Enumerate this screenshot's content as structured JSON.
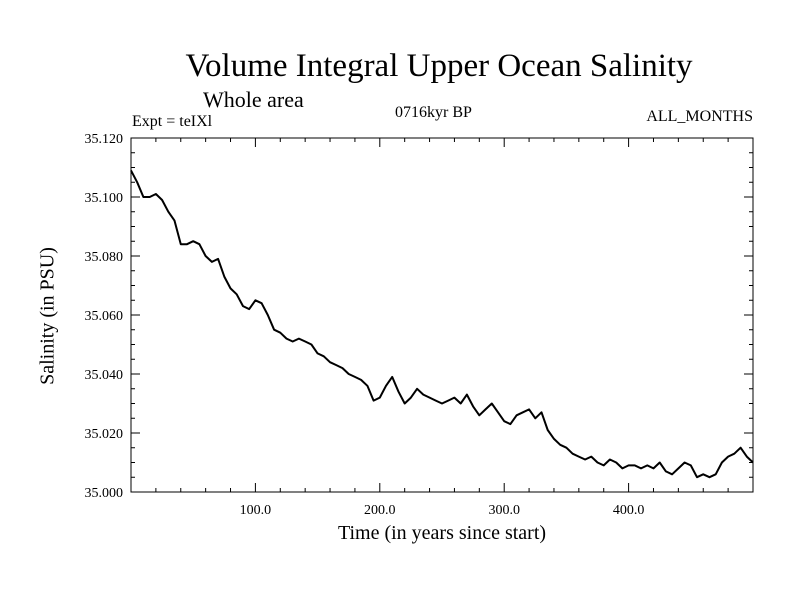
{
  "chart_data": {
    "type": "line",
    "title": "Volume Integral Upper Ocean Salinity",
    "subtitle": "Whole area",
    "annotations": {
      "experiment": "Expt = teIXl",
      "period": "0716kyr BP",
      "months": "ALL_MONTHS"
    },
    "xlabel": "Time (in years since start)",
    "ylabel": "Salinity (in PSU)",
    "xlim": [
      0,
      500
    ],
    "ylim": [
      35.0,
      35.12
    ],
    "x_ticks": [
      100,
      200,
      300,
      400
    ],
    "x_tick_labels": [
      "100.0",
      "200.0",
      "300.0",
      "400.0"
    ],
    "y_ticks": [
      35.0,
      35.02,
      35.04,
      35.06,
      35.08,
      35.1,
      35.12
    ],
    "y_tick_labels": [
      "35.000",
      "35.020",
      "35.040",
      "35.060",
      "35.080",
      "35.100",
      "35.120"
    ],
    "grid": false,
    "series": [
      {
        "color": "#000000",
        "x": [
          0,
          5,
          10,
          15,
          20,
          25,
          30,
          35,
          40,
          45,
          50,
          55,
          60,
          65,
          70,
          75,
          80,
          85,
          90,
          95,
          100,
          105,
          110,
          115,
          120,
          125,
          130,
          135,
          140,
          145,
          150,
          155,
          160,
          165,
          170,
          175,
          180,
          185,
          190,
          195,
          200,
          205,
          210,
          215,
          220,
          225,
          230,
          235,
          240,
          245,
          250,
          255,
          260,
          265,
          270,
          275,
          280,
          285,
          290,
          295,
          300,
          305,
          310,
          315,
          320,
          325,
          330,
          335,
          340,
          345,
          350,
          355,
          360,
          365,
          370,
          375,
          380,
          385,
          390,
          395,
          400,
          405,
          410,
          415,
          420,
          425,
          430,
          435,
          440,
          445,
          450,
          455,
          460,
          465,
          470,
          475,
          480,
          485,
          490,
          495,
          500
        ],
        "y": [
          35.109,
          35.105,
          35.1,
          35.1,
          35.101,
          35.099,
          35.095,
          35.092,
          35.084,
          35.084,
          35.085,
          35.084,
          35.08,
          35.078,
          35.079,
          35.073,
          35.069,
          35.067,
          35.063,
          35.062,
          35.065,
          35.064,
          35.06,
          35.055,
          35.054,
          35.052,
          35.051,
          35.052,
          35.051,
          35.05,
          35.047,
          35.046,
          35.044,
          35.043,
          35.042,
          35.04,
          35.039,
          35.038,
          35.036,
          35.031,
          35.032,
          35.036,
          35.039,
          35.034,
          35.03,
          35.032,
          35.035,
          35.033,
          35.032,
          35.031,
          35.03,
          35.031,
          35.032,
          35.03,
          35.033,
          35.029,
          35.026,
          35.028,
          35.03,
          35.027,
          35.024,
          35.023,
          35.026,
          35.027,
          35.028,
          35.025,
          35.027,
          35.021,
          35.018,
          35.016,
          35.015,
          35.013,
          35.012,
          35.011,
          35.012,
          35.01,
          35.009,
          35.011,
          35.01,
          35.008,
          35.009,
          35.009,
          35.008,
          35.009,
          35.008,
          35.01,
          35.007,
          35.006,
          35.008,
          35.01,
          35.009,
          35.005,
          35.006,
          35.005,
          35.006,
          35.01,
          35.012,
          35.013,
          35.015,
          35.012,
          35.01
        ]
      }
    ]
  }
}
